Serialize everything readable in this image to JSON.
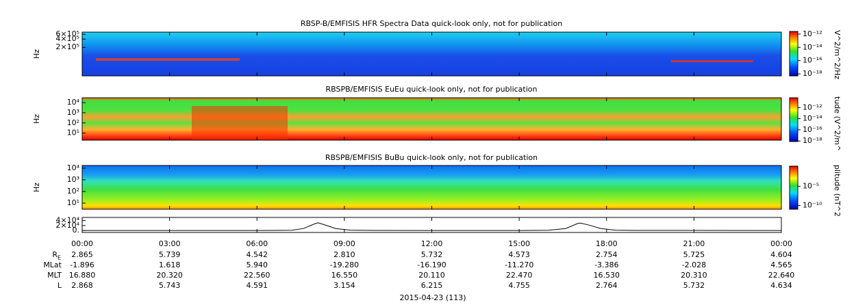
{
  "chart_data": [
    {
      "type": "spectrogram",
      "title": "RBSP-B/EMFISIS  HFR Spectra Data quick-look only, not for publication",
      "ylabel": "Hz",
      "log": true,
      "ylim": [
        18000,
        720000
      ],
      "yticks": [
        {
          "value": 600000,
          "label": "6×10⁵"
        },
        {
          "value": 400000,
          "label": "4×10⁵"
        },
        {
          "value": 200000,
          "label": "2×10⁵"
        }
      ],
      "colorbar": {
        "label": "V^2/m^2/Hz",
        "lim": [
          5e-19,
          2.5e-12
        ],
        "ticks": [
          {
            "value": 1e-12,
            "label": "10⁻¹²"
          },
          {
            "value": 1e-14,
            "label": "10⁻¹⁴"
          },
          {
            "value": 1e-16,
            "label": "10⁻¹⁶"
          },
          {
            "value": 1e-18,
            "label": "10⁻¹⁸"
          }
        ]
      }
    },
    {
      "type": "spectrogram",
      "title": "RBSPB/EMFISIS  EuEu quick-look only, not for publication",
      "ylabel": "Hz",
      "log": true,
      "ylim": [
        2,
        30000
      ],
      "yticks": [
        {
          "value": 10000,
          "label": "10⁴"
        },
        {
          "value": 1000,
          "label": "10³"
        },
        {
          "value": 100,
          "label": "10²"
        },
        {
          "value": 10,
          "label": "10¹"
        }
      ],
      "colorbar": {
        "label": "tude (V^2/m^",
        "lim": [
          8e-19,
          5.6e-11
        ],
        "ticks": [
          {
            "value": 1e-12,
            "label": "10⁻¹²"
          },
          {
            "value": 1e-14,
            "label": "10⁻¹⁴"
          },
          {
            "value": 1e-16,
            "label": "10⁻¹⁶"
          },
          {
            "value": 1e-18,
            "label": "10⁻¹⁸"
          }
        ]
      }
    },
    {
      "type": "spectrogram",
      "title": "RBSPB/EMFISIS  BuBu quick-look only, not for publication",
      "ylabel": "Hz",
      "log": true,
      "ylim": [
        3,
        17000
      ],
      "yticks": [
        {
          "value": 10000,
          "label": "10⁴"
        },
        {
          "value": 1000,
          "label": "10³"
        },
        {
          "value": 100,
          "label": "10²"
        },
        {
          "value": 10,
          "label": "10¹"
        }
      ],
      "colorbar": {
        "label": "plitude (nT^2",
        "lim": [
          1.1e-11,
          1.6
        ],
        "ticks": [
          {
            "value": 1e-05,
            "label": "10⁻⁵"
          },
          {
            "value": 1e-10,
            "label": "10⁻¹⁰"
          }
        ]
      }
    },
    {
      "type": "line",
      "ylim": [
        -8000,
        53000
      ],
      "yticks": [
        {
          "value": 40000,
          "label": "4×10⁴"
        },
        {
          "value": 20000,
          "label": "2×10⁴"
        },
        {
          "value": 0,
          "label": "0."
        }
      ],
      "xlim": [
        0,
        24
      ],
      "xticks": [
        {
          "value": 0,
          "label": "00:00"
        },
        {
          "value": 3,
          "label": "03:00"
        },
        {
          "value": 6,
          "label": "06:00"
        },
        {
          "value": 9,
          "label": "09:00"
        },
        {
          "value": 12,
          "label": "12:00"
        },
        {
          "value": 15,
          "label": "15:00"
        },
        {
          "value": 18,
          "label": "18:00"
        },
        {
          "value": 21,
          "label": "21:00"
        },
        {
          "value": 24,
          "label": "00:00"
        }
      ],
      "x": [
        0,
        6,
        7.2,
        7.6,
        8.0,
        8.1,
        8.3,
        8.7,
        9.2,
        10,
        12,
        15,
        16,
        16.6,
        17.0,
        17.1,
        17.4,
        17.8,
        18.3,
        19,
        24
      ],
      "values": [
        0,
        0,
        800,
        8000,
        28000,
        31000,
        24000,
        8000,
        1500,
        200,
        0,
        0,
        800,
        8000,
        28000,
        30000,
        22000,
        8000,
        1500,
        200,
        0
      ],
      "color": "#000000",
      "ephemeris": [
        {
          "label": "R",
          "sub": "E",
          "values": [
            "2.865",
            "5.739",
            "4.542",
            "2.810",
            "5.732",
            "4.573",
            "2.754",
            "5.725",
            "4.604"
          ]
        },
        {
          "label": "MLat",
          "values": [
            "-1.896",
            "1.618",
            "5.940",
            "-19.280",
            "-16.190",
            "-11.270",
            "-3.386",
            "-2.028",
            "4.565"
          ]
        },
        {
          "label": "MLT",
          "values": [
            "16.880",
            "20.320",
            "22.560",
            "16.550",
            "20.110",
            "22.470",
            "16.530",
            "20.310",
            "22.640"
          ]
        },
        {
          "label": "L",
          "values": [
            "2.868",
            "5.743",
            "4.591",
            "3.154",
            "6.215",
            "4.755",
            "2.764",
            "5.732",
            "4.634"
          ]
        }
      ],
      "xlabel": "2015-04-23 (113)"
    }
  ]
}
